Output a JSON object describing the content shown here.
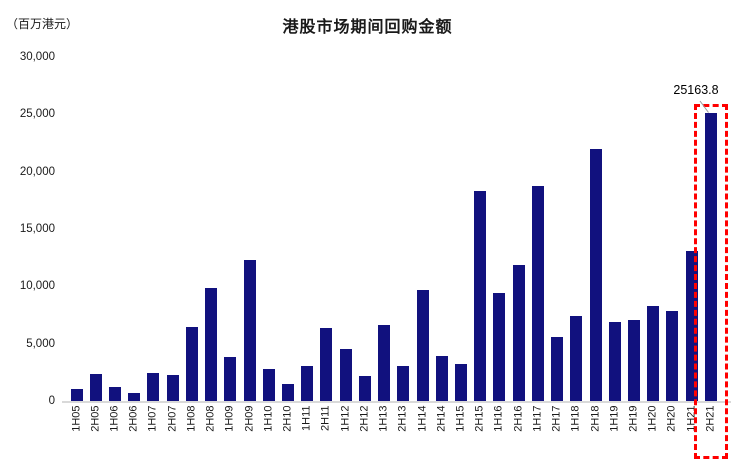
{
  "chart_data": {
    "type": "bar",
    "title": "港股市场期间回购金额",
    "ylabel": "（百万港元）",
    "xlabel": "",
    "categories": [
      "1H05",
      "2H05",
      "1H06",
      "2H06",
      "1H07",
      "2H07",
      "1H08",
      "2H08",
      "1H09",
      "2H09",
      "1H10",
      "2H10",
      "1H11",
      "2H11",
      "1H12",
      "2H12",
      "1H13",
      "2H13",
      "1H14",
      "2H14",
      "1H15",
      "2H15",
      "1H16",
      "2H16",
      "1H17",
      "2H17",
      "1H18",
      "2H18",
      "1H19",
      "2H19",
      "1H20",
      "2H20",
      "1H21",
      "2H21"
    ],
    "values": [
      1100,
      2460,
      1330,
      780,
      2510,
      2340,
      6530,
      9940,
      3900,
      12400,
      2860,
      1560,
      3180,
      6470,
      4600,
      2310,
      6730,
      3180,
      9770,
      4050,
      3350,
      18440,
      9480,
      11970,
      18810,
      5690,
      7510,
      22080,
      6940,
      7170,
      8410,
      7950,
      13180,
      25163.8
    ],
    "ylim": [
      0,
      30000
    ],
    "ytick_step": 5000,
    "ytick_labels": [
      "0",
      "5,000",
      "10,000",
      "15,000",
      "20,000",
      "25,000",
      "30,000"
    ],
    "grid": false,
    "legend": false,
    "bar_color": "#11117E",
    "axis_line_color": "#D9D9D9",
    "highlight": {
      "category": "2H21",
      "annotation_label": "25163.8",
      "box_color": "#FF0000",
      "leader_line_color": "#999999"
    }
  }
}
